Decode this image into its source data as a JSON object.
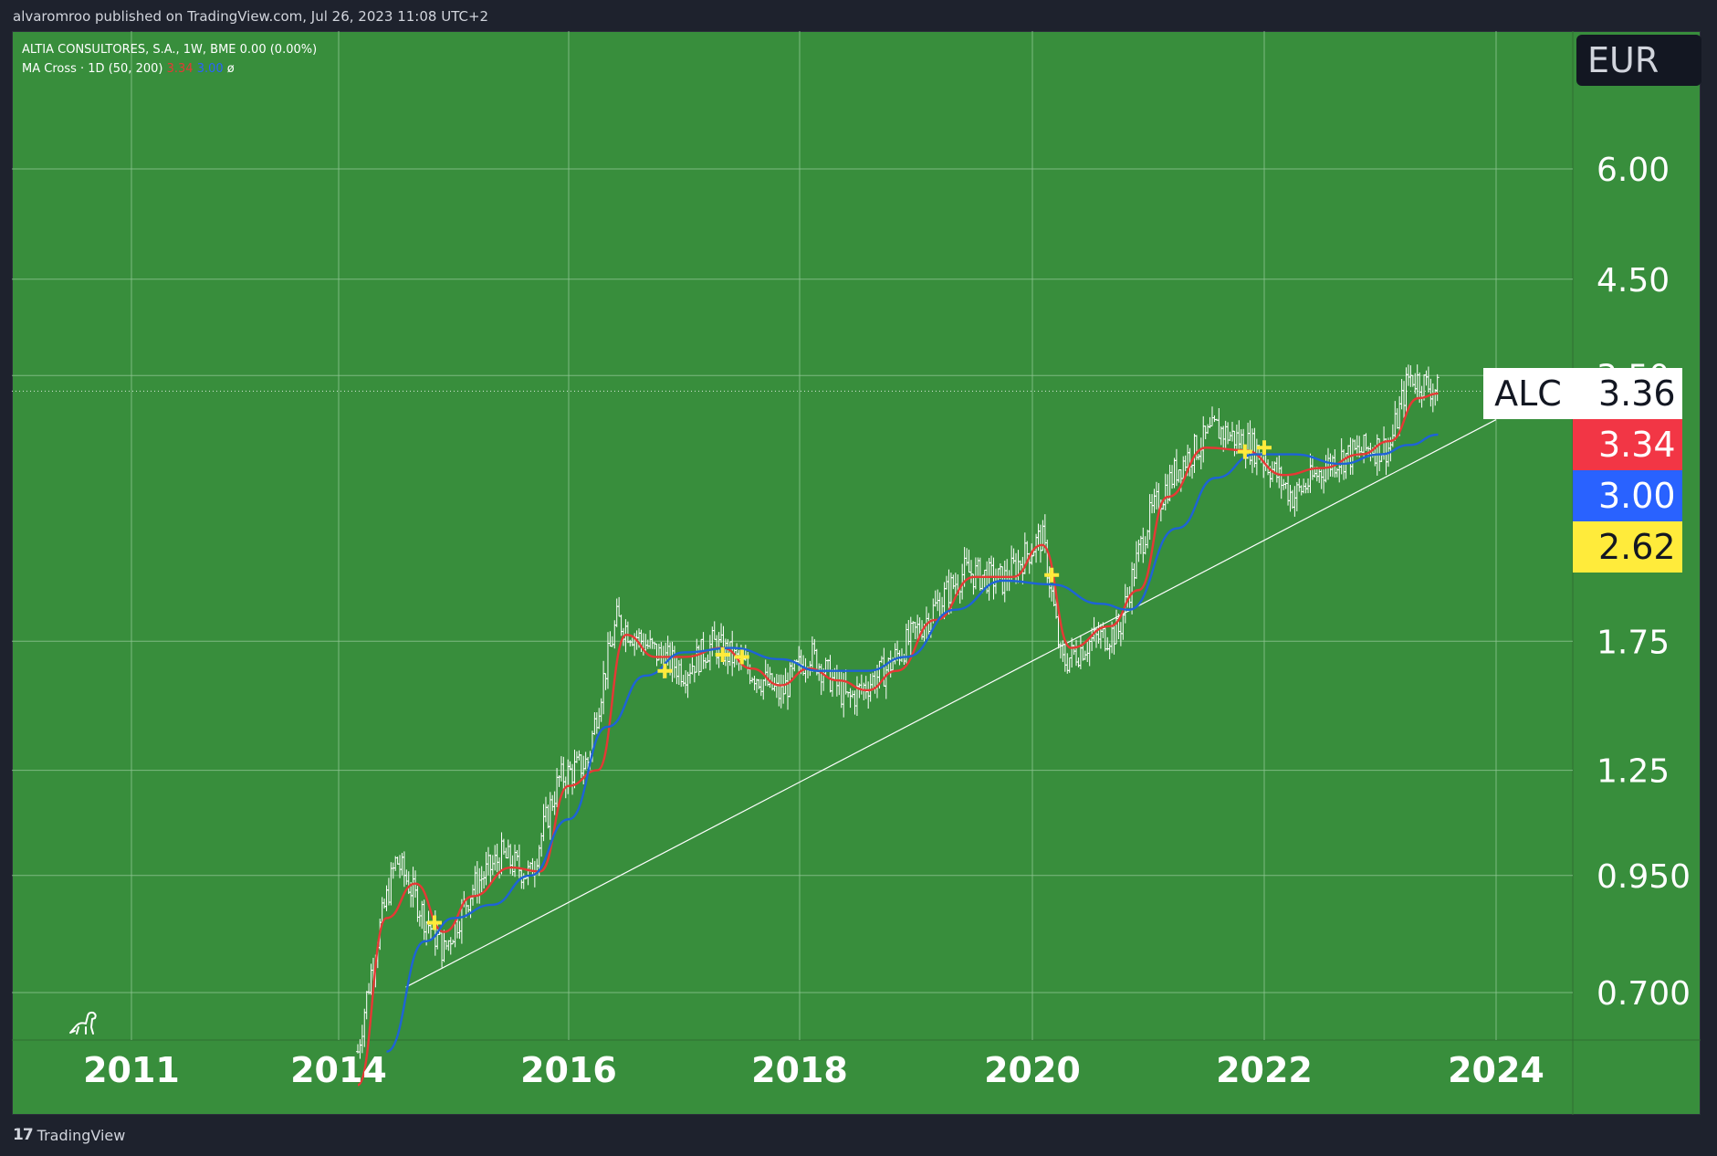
{
  "header": {
    "published_text": "alvaromroo published on TradingView.com, Jul 26, 2023 11:08 UTC+2"
  },
  "legend": {
    "main_line": "ALTIA CONSULTORES, S.A., 1W, BME  0.00 (0.00%)",
    "indicator_name": "MA Cross · 1D (50, 200)",
    "indicator_fast_value": "3.34",
    "indicator_slow_value": "3.00",
    "indicator_extra": "ø"
  },
  "currency": "EUR",
  "ticker_label": "ALC",
  "price_tags": [
    {
      "label": "3.36",
      "bg": "#ffffff",
      "fg": "#131722"
    },
    {
      "label": "3.34",
      "bg": "#f23645",
      "fg": "#ffffff"
    },
    {
      "label": "3.00",
      "bg": "#2962ff",
      "fg": "#ffffff"
    },
    {
      "label": "2.62",
      "bg": "#ffeb3b",
      "fg": "#131722"
    }
  ],
  "footer": {
    "brand": "TradingView",
    "logo_mark": "17"
  },
  "colors": {
    "background": "#388e3c",
    "frame": "#1e222d",
    "grid": "#8fc492",
    "bars": "#ffffff",
    "ma_fast": "#e53935",
    "ma_slow": "#1e63d6",
    "cross_marker": "#ffeb3b",
    "trendline": "#ffffff"
  },
  "chart_data": {
    "type": "line",
    "scale": "log",
    "x_ticks": [
      "2011",
      "2014",
      "2016",
      "2018",
      "2020",
      "2022",
      "2024"
    ],
    "y_ticks": [
      "6.00",
      "4.50",
      "3.50",
      "1.75",
      "1.25",
      "0.950",
      "0.700"
    ],
    "last_price": 3.36,
    "price_series": [
      [
        "2014-03",
        0.6
      ],
      [
        "2014-05",
        0.8
      ],
      [
        "2014-07",
        0.99
      ],
      [
        "2014-10",
        0.85
      ],
      [
        "2014-12",
        0.78
      ],
      [
        "2015-03",
        0.92
      ],
      [
        "2015-06",
        1.0
      ],
      [
        "2015-09",
        0.95
      ],
      [
        "2015-12",
        1.22
      ],
      [
        "2016-03",
        1.28
      ],
      [
        "2016-06",
        1.85
      ],
      [
        "2016-10",
        1.7
      ],
      [
        "2017-01",
        1.62
      ],
      [
        "2017-04",
        1.74
      ],
      [
        "2017-08",
        1.62
      ],
      [
        "2017-11",
        1.52
      ],
      [
        "2018-02",
        1.7
      ],
      [
        "2018-06",
        1.5
      ],
      [
        "2018-10",
        1.63
      ],
      [
        "2019-02",
        1.85
      ],
      [
        "2019-06",
        2.1
      ],
      [
        "2019-10",
        2.05
      ],
      [
        "2020-02",
        2.3
      ],
      [
        "2020-04",
        1.65
      ],
      [
        "2020-07",
        1.75
      ],
      [
        "2020-10",
        1.8
      ],
      [
        "2021-01",
        2.4
      ],
      [
        "2021-04",
        2.75
      ],
      [
        "2021-08",
        3.05
      ],
      [
        "2021-12",
        2.9
      ],
      [
        "2022-04",
        2.55
      ],
      [
        "2022-08",
        2.8
      ],
      [
        "2022-12",
        2.9
      ],
      [
        "2023-02",
        2.9
      ],
      [
        "2023-04",
        3.5
      ],
      [
        "2023-07",
        3.36
      ]
    ],
    "series": [
      {
        "name": "MA Cross fast (50)",
        "color": "#e53935",
        "values": [
          [
            "2014-03",
            0.55
          ],
          [
            "2014-06",
            0.85
          ],
          [
            "2014-09",
            0.93
          ],
          [
            "2014-12",
            0.82
          ],
          [
            "2015-03",
            0.9
          ],
          [
            "2015-07",
            0.97
          ],
          [
            "2015-10",
            0.96
          ],
          [
            "2016-01",
            1.2
          ],
          [
            "2016-04",
            1.25
          ],
          [
            "2016-07",
            1.78
          ],
          [
            "2016-10",
            1.68
          ],
          [
            "2017-01",
            1.68
          ],
          [
            "2017-05",
            1.72
          ],
          [
            "2017-08",
            1.63
          ],
          [
            "2017-11",
            1.56
          ],
          [
            "2018-02",
            1.63
          ],
          [
            "2018-05",
            1.58
          ],
          [
            "2018-08",
            1.54
          ],
          [
            "2018-11",
            1.62
          ],
          [
            "2019-03",
            1.85
          ],
          [
            "2019-07",
            2.07
          ],
          [
            "2019-11",
            2.07
          ],
          [
            "2020-02",
            2.25
          ],
          [
            "2020-05",
            1.72
          ],
          [
            "2020-09",
            1.82
          ],
          [
            "2020-12",
            2.0
          ],
          [
            "2021-03",
            2.55
          ],
          [
            "2021-07",
            2.9
          ],
          [
            "2021-11",
            2.88
          ],
          [
            "2022-03",
            2.7
          ],
          [
            "2022-07",
            2.75
          ],
          [
            "2022-11",
            2.85
          ],
          [
            "2023-02",
            2.95
          ],
          [
            "2023-05",
            3.3
          ],
          [
            "2023-07",
            3.34
          ]
        ]
      },
      {
        "name": "MA Cross slow (200)",
        "color": "#1e63d6",
        "values": [
          [
            "2014-06",
            0.6
          ],
          [
            "2014-10",
            0.8
          ],
          [
            "2015-01",
            0.85
          ],
          [
            "2015-05",
            0.88
          ],
          [
            "2015-09",
            0.95
          ],
          [
            "2016-01",
            1.1
          ],
          [
            "2016-05",
            1.4
          ],
          [
            "2016-09",
            1.6
          ],
          [
            "2017-01",
            1.7
          ],
          [
            "2017-06",
            1.72
          ],
          [
            "2017-11",
            1.67
          ],
          [
            "2018-03",
            1.62
          ],
          [
            "2018-08",
            1.62
          ],
          [
            "2018-12",
            1.68
          ],
          [
            "2019-05",
            1.9
          ],
          [
            "2019-10",
            2.05
          ],
          [
            "2020-03",
            2.03
          ],
          [
            "2020-08",
            1.93
          ],
          [
            "2020-11",
            1.9
          ],
          [
            "2021-04",
            2.35
          ],
          [
            "2021-08",
            2.68
          ],
          [
            "2021-12",
            2.85
          ],
          [
            "2022-04",
            2.85
          ],
          [
            "2022-09",
            2.78
          ],
          [
            "2023-01",
            2.85
          ],
          [
            "2023-04",
            2.92
          ],
          [
            "2023-07",
            3.0
          ]
        ]
      }
    ],
    "cross_markers": [
      [
        "2014-11",
        0.84
      ],
      [
        "2016-11",
        1.62
      ],
      [
        "2017-05",
        1.69
      ],
      [
        "2017-07",
        1.68
      ],
      [
        "2020-03",
        2.08
      ],
      [
        "2021-11",
        2.87
      ],
      [
        "2022-01",
        2.9
      ]
    ],
    "trendline": [
      [
        "2014-08",
        0.71
      ],
      [
        "2024-01",
        3.12
      ]
    ]
  }
}
